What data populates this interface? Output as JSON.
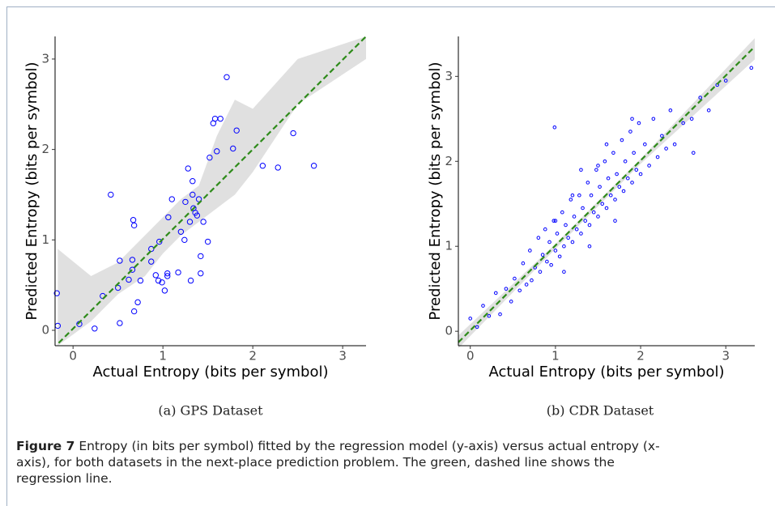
{
  "chart_data": [
    {
      "type": "scatter",
      "caption": "(a) GPS Dataset",
      "x_label": "Actual Entropy (bits per symbol)",
      "y_label": "Predicted Entropy (bits per symbol)",
      "xlim": [
        -0.2,
        3.26
      ],
      "ylim": [
        -0.17,
        3.25
      ],
      "xticks": [
        0,
        1,
        2,
        3
      ],
      "yticks": [
        0,
        1,
        2,
        3
      ],
      "color": "#0000ff",
      "x": [
        -0.17,
        -0.18,
        0.07,
        0.24,
        0.33,
        0.42,
        0.5,
        0.52,
        0.52,
        0.62,
        0.66,
        0.66,
        0.67,
        0.68,
        0.68,
        0.72,
        0.75,
        0.87,
        0.87,
        0.92,
        0.95,
        0.96,
        0.99,
        1.02,
        1.05,
        1.05,
        1.06,
        1.1,
        1.17,
        1.2,
        1.24,
        1.25,
        1.28,
        1.3,
        1.31,
        1.33,
        1.33,
        1.34,
        1.36,
        1.38,
        1.4,
        1.42,
        1.42,
        1.45,
        1.5,
        1.52,
        1.56,
        1.58,
        1.6,
        1.64,
        1.71,
        1.78,
        1.82,
        2.11,
        2.28,
        2.45,
        2.68
      ],
      "values": [
        0.05,
        0.41,
        0.07,
        0.02,
        0.38,
        1.5,
        0.47,
        0.77,
        0.08,
        0.56,
        0.67,
        0.78,
        1.22,
        1.16,
        0.21,
        0.31,
        0.55,
        0.9,
        0.76,
        0.61,
        0.55,
        0.98,
        0.53,
        0.44,
        0.63,
        0.6,
        1.25,
        1.45,
        0.64,
        1.09,
        1.0,
        1.42,
        1.79,
        1.2,
        0.55,
        1.65,
        1.5,
        1.35,
        1.3,
        1.27,
        1.45,
        0.82,
        0.63,
        1.2,
        0.98,
        1.91,
        2.29,
        2.34,
        1.98,
        2.34,
        2.8,
        2.01,
        2.21,
        1.82,
        1.8,
        2.18,
        1.82
      ],
      "regression_line": {
        "color": "#2e8b1a",
        "x": [
          -0.16,
          3.26
        ],
        "y": [
          -0.14,
          3.25
        ]
      },
      "band": {
        "color": "#e0e0e0",
        "x": [
          -0.17,
          0.2,
          0.5,
          0.8,
          1.0,
          1.2,
          1.4,
          1.6,
          1.8,
          2.0,
          2.5,
          3.26
        ],
        "lower": [
          -0.17,
          0.1,
          0.4,
          0.6,
          0.85,
          1.05,
          1.2,
          1.35,
          1.5,
          1.75,
          2.5,
          3.0
        ],
        "upper": [
          0.9,
          0.6,
          0.75,
          1.05,
          1.25,
          1.45,
          1.6,
          2.15,
          2.55,
          2.45,
          3.0,
          3.25
        ]
      }
    },
    {
      "type": "scatter",
      "caption": "(b) CDR Dataset",
      "x_label": "Actual Entropy (bits per symbol)",
      "y_label": "Predicted Entropy (bits per symbol)",
      "xlim": [
        -0.14,
        3.34
      ],
      "ylim": [
        -0.17,
        3.47
      ],
      "xticks": [
        0,
        1,
        2,
        3
      ],
      "yticks": [
        0,
        1,
        2,
        3
      ],
      "color": "#0000ff",
      "x": [
        0.0,
        0.08,
        0.15,
        0.22,
        0.3,
        0.35,
        0.42,
        0.48,
        0.52,
        0.58,
        0.62,
        0.66,
        0.7,
        0.72,
        0.76,
        0.8,
        0.82,
        0.85,
        0.88,
        0.9,
        0.93,
        0.95,
        0.98,
        1.0,
        1.02,
        1.05,
        1.08,
        1.1,
        1.12,
        1.15,
        1.18,
        1.2,
        1.22,
        1.25,
        1.28,
        1.3,
        1.32,
        1.35,
        1.38,
        1.4,
        1.42,
        1.45,
        1.48,
        1.5,
        1.52,
        1.55,
        1.58,
        1.6,
        1.62,
        1.65,
        1.68,
        1.7,
        1.72,
        1.75,
        1.78,
        1.8,
        1.82,
        1.85,
        1.88,
        1.9,
        1.92,
        1.95,
        1.98,
        2.0,
        2.05,
        2.1,
        2.15,
        2.2,
        2.25,
        2.3,
        2.35,
        2.4,
        2.5,
        2.6,
        2.7,
        2.8,
        2.9,
        3.0,
        0.99,
        2.62,
        3.3,
        1.1,
        1.3,
        1.5,
        1.7,
        1.9,
        1.4,
        1.6,
        1.2,
        1.0
      ],
      "values": [
        0.15,
        0.05,
        0.3,
        0.18,
        0.45,
        0.2,
        0.5,
        0.35,
        0.62,
        0.48,
        0.8,
        0.55,
        0.95,
        0.6,
        0.75,
        1.1,
        0.7,
        0.9,
        1.2,
        0.82,
        1.05,
        0.78,
        1.3,
        0.95,
        1.15,
        0.88,
        1.4,
        1.0,
        1.25,
        1.1,
        1.55,
        1.05,
        1.35,
        1.2,
        1.6,
        1.15,
        1.45,
        1.3,
        1.75,
        1.25,
        1.6,
        1.4,
        1.9,
        1.35,
        1.7,
        1.5,
        2.0,
        1.45,
        1.8,
        1.6,
        2.1,
        1.55,
        1.85,
        1.7,
        2.25,
        1.65,
        2.0,
        1.8,
        2.35,
        1.75,
        2.1,
        1.9,
        2.45,
        1.85,
        2.2,
        1.95,
        2.5,
        2.05,
        2.3,
        2.15,
        2.6,
        2.2,
        2.45,
        2.5,
        2.75,
        2.6,
        2.9,
        2.95,
        2.4,
        2.1,
        3.1,
        0.7,
        1.9,
        1.95,
        1.3,
        2.5,
        1.0,
        2.2,
        1.6,
        1.3
      ],
      "regression_line": {
        "color": "#2e8b1a",
        "x": [
          -0.14,
          3.32
        ],
        "y": [
          -0.13,
          3.33
        ]
      },
      "band": {
        "color": "#e0e0e0",
        "x": [
          -0.14,
          1,
          2,
          3.34
        ],
        "lower": [
          -0.2,
          0.97,
          1.97,
          3.2
        ],
        "upper": [
          -0.05,
          1.03,
          2.03,
          3.45
        ]
      }
    }
  ],
  "figure_caption": {
    "label": "Figure 7",
    "text": "Entropy (in bits per symbol) fitted by the regression model (y-axis) versus actual entropy (x-axis), for both datasets in the next-place prediction problem. The green, dashed line shows the regression line."
  }
}
